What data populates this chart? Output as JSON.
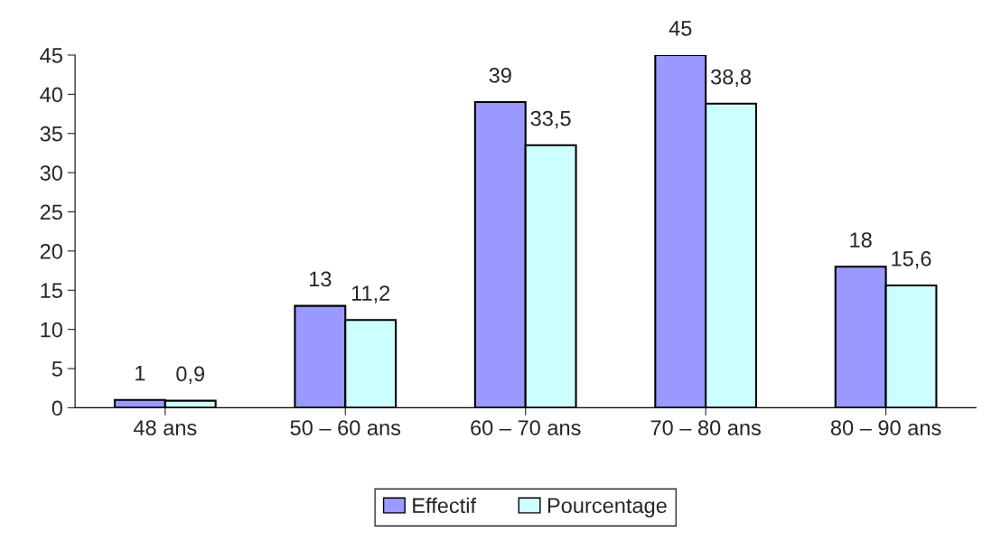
{
  "chart_data": {
    "type": "bar",
    "categories": [
      "48 ans",
      "50 – 60 ans",
      "60 – 70 ans",
      "70 – 80 ans",
      "80 – 90 ans"
    ],
    "series": [
      {
        "name": "Effectif",
        "color": "#9999ff",
        "values": [
          1,
          13,
          39,
          45,
          18
        ],
        "value_labels": [
          "1",
          "13",
          "39",
          "45",
          "18"
        ]
      },
      {
        "name": "Pourcentage",
        "color": "#ccffff",
        "values": [
          0.9,
          11.2,
          33.5,
          38.8,
          15.6
        ],
        "value_labels": [
          "0,9",
          "11,2",
          "33,5",
          "38,8",
          "15,6"
        ]
      }
    ],
    "ylim": [
      0,
      45
    ],
    "yticks": [
      0,
      5,
      10,
      15,
      20,
      25,
      30,
      35,
      40,
      45
    ],
    "grid": false,
    "legend": "bottom"
  }
}
